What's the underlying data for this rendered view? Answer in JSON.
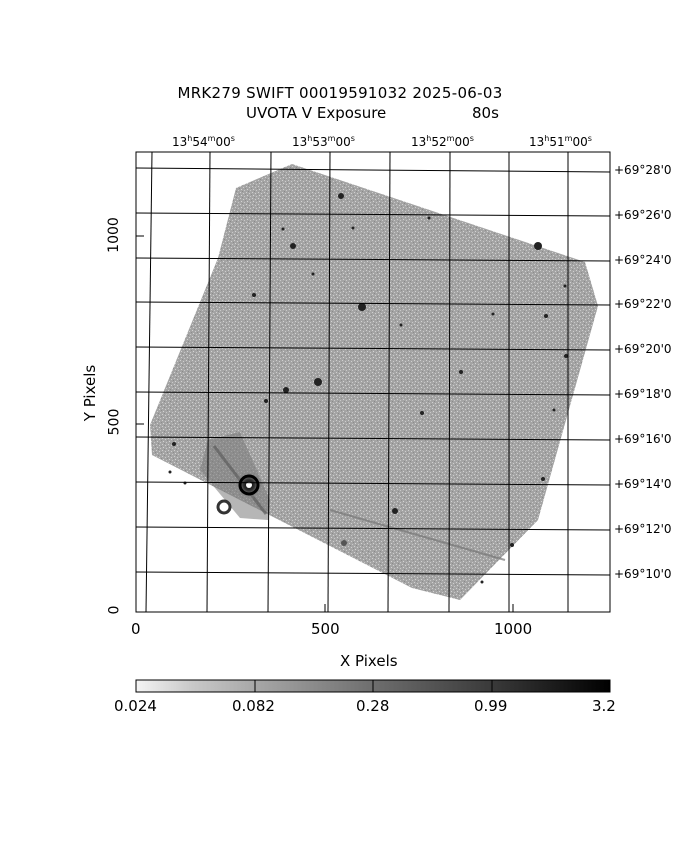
{
  "header": {
    "title_line1": "MRK279 SWIFT 00019591032 2025-06-03",
    "title_line2_left": "UVOTA V Exposure",
    "title_line2_right": "80s"
  },
  "axes": {
    "x_title": "X Pixels",
    "y_title": "Y Pixels",
    "x_ticks": [
      "0",
      "500",
      "1000"
    ],
    "y_ticks": [
      "0",
      "500",
      "1000"
    ],
    "ra_ticks": [
      {
        "h": "13",
        "m": "54",
        "s": "00"
      },
      {
        "h": "13",
        "m": "53",
        "s": "00"
      },
      {
        "h": "13",
        "m": "52",
        "s": "00"
      },
      {
        "h": "13",
        "m": "51",
        "s": "00"
      }
    ],
    "dec_ticks": [
      "+69°28'0",
      "+69°26'0",
      "+69°24'0",
      "+69°22'0",
      "+69°20'0",
      "+69°18'0",
      "+69°16'0",
      "+69°14'0",
      "+69°12'0",
      "+69°10'0"
    ]
  },
  "colorbar": {
    "labels": [
      "0.024",
      "0.082",
      "0.28",
      "0.99",
      "3.2"
    ],
    "stops": [
      "#f4f4f4",
      "#d8d8d8",
      "#b2b2b2",
      "#8e8e8e",
      "#707070",
      "#555555",
      "#3c3c3c",
      "#242424",
      "#0c0c0c"
    ]
  },
  "image": {
    "background_gray": "#9c9c9c",
    "noise_gray": "#c8c8c8"
  }
}
